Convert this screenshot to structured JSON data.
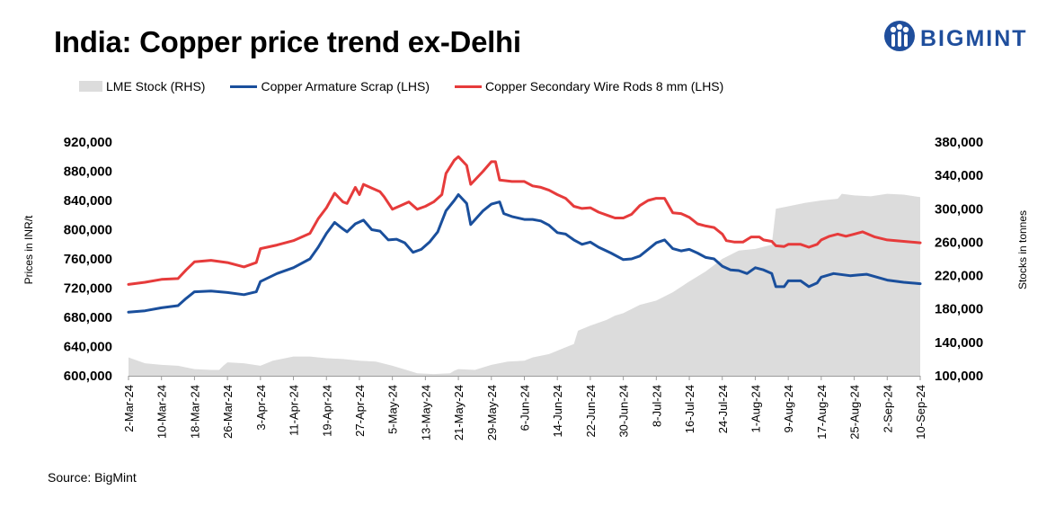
{
  "title": "India: Copper price trend ex-Delhi",
  "brand": {
    "name": "BIGMINT",
    "color": "#1f4e9c",
    "icon": "bigmint-people-icon"
  },
  "source": "Source: BigMint",
  "colors": {
    "lme": "#dcdcdc",
    "scrap": "#1a4f9c",
    "rods": "#e63b3b"
  },
  "chart_data": {
    "type": "line",
    "ylabel": "Prices in INR/t",
    "y2label": "Stocks in tonnes",
    "ylim": [
      600000,
      920000
    ],
    "y_ticks": [
      "600,000",
      "640,000",
      "680,000",
      "720,000",
      "760,000",
      "800,000",
      "840,000",
      "880,000",
      "920,000"
    ],
    "y2lim": [
      100000,
      380000
    ],
    "y2_ticks": [
      "100,000",
      "140,000",
      "180,000",
      "220,000",
      "260,000",
      "300,000",
      "340,000",
      "380,000"
    ],
    "x_ticks": [
      "2-Mar-24",
      "10-Mar-24",
      "18-Mar-24",
      "26-Mar-24",
      "3-Apr-24",
      "11-Apr-24",
      "19-Apr-24",
      "27-Apr-24",
      "5-May-24",
      "13-May-24",
      "21-May-24",
      "29-May-24",
      "6-Jun-24",
      "14-Jun-24",
      "22-Jun-24",
      "30-Jun-24",
      "8-Jul-24",
      "16-Jul-24",
      "24-Jul-24",
      "1-Aug-24",
      "9-Aug-24",
      "17-Aug-24",
      "25-Aug-24",
      "2-Sep-24",
      "10-Sep-24"
    ],
    "legend_position": "top-left",
    "grid": false,
    "series": [
      {
        "name": "LME Stock (RHS)",
        "type": "area",
        "axis": "right",
        "points": [
          [
            "2-Mar-24",
            122000
          ],
          [
            "6-Mar-24",
            115000
          ],
          [
            "10-Mar-24",
            113000
          ],
          [
            "14-Mar-24",
            112000
          ],
          [
            "18-Mar-24",
            108000
          ],
          [
            "22-Mar-24",
            107000
          ],
          [
            "24-Mar-24",
            107000
          ],
          [
            "25-Mar-24",
            112000
          ],
          [
            "26-Mar-24",
            116000
          ],
          [
            "30-Mar-24",
            115000
          ],
          [
            "3-Apr-24",
            112000
          ],
          [
            "6-Apr-24",
            118000
          ],
          [
            "11-Apr-24",
            123000
          ],
          [
            "15-Apr-24",
            123000
          ],
          [
            "19-Apr-24",
            121000
          ],
          [
            "23-Apr-24",
            120000
          ],
          [
            "27-Apr-24",
            118000
          ],
          [
            "1-May-24",
            117000
          ],
          [
            "5-May-24",
            112000
          ],
          [
            "9-May-24",
            106000
          ],
          [
            "11-May-24",
            103000
          ],
          [
            "15-May-24",
            102000
          ],
          [
            "19-May-24",
            103000
          ],
          [
            "20-May-24",
            106000
          ],
          [
            "21-May-24",
            108000
          ],
          [
            "25-May-24",
            107000
          ],
          [
            "29-May-24",
            113000
          ],
          [
            "2-Jun-24",
            117000
          ],
          [
            "6-Jun-24",
            118000
          ],
          [
            "8-Jun-24",
            122000
          ],
          [
            "12-Jun-24",
            126000
          ],
          [
            "14-Jun-24",
            130000
          ],
          [
            "16-Jun-24",
            134000
          ],
          [
            "18-Jun-24",
            138000
          ],
          [
            "19-Jun-24",
            154000
          ],
          [
            "22-Jun-24",
            160000
          ],
          [
            "26-Jun-24",
            167000
          ],
          [
            "28-Jun-24",
            172000
          ],
          [
            "30-Jun-24",
            175000
          ],
          [
            "4-Jul-24",
            185000
          ],
          [
            "8-Jul-24",
            190000
          ],
          [
            "12-Jul-24",
            200000
          ],
          [
            "16-Jul-24",
            213000
          ],
          [
            "20-Jul-24",
            225000
          ],
          [
            "24-Jul-24",
            240000
          ],
          [
            "28-Jul-24",
            250000
          ],
          [
            "1-Aug-24",
            252000
          ],
          [
            "5-Aug-24",
            257000
          ],
          [
            "6-Aug-24",
            300000
          ],
          [
            "9-Aug-24",
            303000
          ],
          [
            "13-Aug-24",
            307000
          ],
          [
            "17-Aug-24",
            310000
          ],
          [
            "21-Aug-24",
            312000
          ],
          [
            "22-Aug-24",
            318000
          ],
          [
            "25-Aug-24",
            316000
          ],
          [
            "29-Aug-24",
            315000
          ],
          [
            "2-Sep-24",
            318000
          ],
          [
            "6-Sep-24",
            317000
          ],
          [
            "10-Sep-24",
            314000
          ]
        ]
      },
      {
        "name": "Copper Armature Scrap (LHS)",
        "type": "line",
        "axis": "left",
        "points": [
          [
            "2-Mar-24",
            687000
          ],
          [
            "6-Mar-24",
            689000
          ],
          [
            "10-Mar-24",
            693000
          ],
          [
            "14-Mar-24",
            696000
          ],
          [
            "16-Mar-24",
            706000
          ],
          [
            "18-Mar-24",
            715000
          ],
          [
            "22-Mar-24",
            716000
          ],
          [
            "26-Mar-24",
            714000
          ],
          [
            "30-Mar-24",
            711000
          ],
          [
            "2-Apr-24",
            715000
          ],
          [
            "3-Apr-24",
            729000
          ],
          [
            "7-Apr-24",
            740000
          ],
          [
            "11-Apr-24",
            748000
          ],
          [
            "15-Apr-24",
            760000
          ],
          [
            "17-Apr-24",
            776000
          ],
          [
            "19-Apr-24",
            795000
          ],
          [
            "21-Apr-24",
            810000
          ],
          [
            "23-Apr-24",
            801000
          ],
          [
            "24-Apr-24",
            797000
          ],
          [
            "26-Apr-24",
            808000
          ],
          [
            "28-Apr-24",
            813000
          ],
          [
            "30-Apr-24",
            800000
          ],
          [
            "2-May-24",
            798000
          ],
          [
            "4-May-24",
            786000
          ],
          [
            "6-May-24",
            787000
          ],
          [
            "8-May-24",
            782000
          ],
          [
            "10-May-24",
            769000
          ],
          [
            "12-May-24",
            773000
          ],
          [
            "14-May-24",
            783000
          ],
          [
            "16-May-24",
            797000
          ],
          [
            "18-May-24",
            826000
          ],
          [
            "20-May-24",
            840000
          ],
          [
            "21-May-24",
            848000
          ],
          [
            "23-May-24",
            836000
          ],
          [
            "24-May-24",
            807000
          ],
          [
            "27-May-24",
            826000
          ],
          [
            "29-May-24",
            835000
          ],
          [
            "31-May-24",
            838000
          ],
          [
            "1-Jun-24",
            822000
          ],
          [
            "3-Jun-24",
            818000
          ],
          [
            "6-Jun-24",
            814000
          ],
          [
            "8-Jun-24",
            814000
          ],
          [
            "10-Jun-24",
            812000
          ],
          [
            "12-Jun-24",
            806000
          ],
          [
            "14-Jun-24",
            796000
          ],
          [
            "16-Jun-24",
            794000
          ],
          [
            "18-Jun-24",
            786000
          ],
          [
            "20-Jun-24",
            780000
          ],
          [
            "22-Jun-24",
            783000
          ],
          [
            "24-Jun-24",
            776000
          ],
          [
            "27-Jun-24",
            768000
          ],
          [
            "30-Jun-24",
            759000
          ],
          [
            "2-Jul-24",
            760000
          ],
          [
            "4-Jul-24",
            764000
          ],
          [
            "6-Jul-24",
            773000
          ],
          [
            "8-Jul-24",
            782000
          ],
          [
            "10-Jul-24",
            786000
          ],
          [
            "12-Jul-24",
            774000
          ],
          [
            "14-Jul-24",
            771000
          ],
          [
            "16-Jul-24",
            773000
          ],
          [
            "18-Jul-24",
            768000
          ],
          [
            "20-Jul-24",
            762000
          ],
          [
            "22-Jul-24",
            760000
          ],
          [
            "24-Jul-24",
            750000
          ],
          [
            "26-Jul-24",
            745000
          ],
          [
            "28-Jul-24",
            744000
          ],
          [
            "30-Jul-24",
            740000
          ],
          [
            "1-Aug-24",
            748000
          ],
          [
            "3-Aug-24",
            745000
          ],
          [
            "5-Aug-24",
            740000
          ],
          [
            "6-Aug-24",
            722000
          ],
          [
            "8-Aug-24",
            722000
          ],
          [
            "9-Aug-24",
            730000
          ],
          [
            "12-Aug-24",
            730000
          ],
          [
            "14-Aug-24",
            722000
          ],
          [
            "16-Aug-24",
            727000
          ],
          [
            "17-Aug-24",
            735000
          ],
          [
            "20-Aug-24",
            740000
          ],
          [
            "24-Aug-24",
            737000
          ],
          [
            "26-Aug-24",
            738000
          ],
          [
            "28-Aug-24",
            739000
          ],
          [
            "2-Sep-24",
            731000
          ],
          [
            "6-Sep-24",
            728000
          ],
          [
            "10-Sep-24",
            726000
          ]
        ]
      },
      {
        "name": "Copper Secondary Wire Rods 8 mm (LHS)",
        "type": "line",
        "axis": "right-of-none",
        "points": [
          [
            "2-Mar-24",
            725000
          ],
          [
            "6-Mar-24",
            728000
          ],
          [
            "10-Mar-24",
            732000
          ],
          [
            "14-Mar-24",
            733000
          ],
          [
            "16-Mar-24",
            745000
          ],
          [
            "18-Mar-24",
            756000
          ],
          [
            "22-Mar-24",
            758000
          ],
          [
            "26-Mar-24",
            755000
          ],
          [
            "30-Mar-24",
            749000
          ],
          [
            "2-Apr-24",
            755000
          ],
          [
            "3-Apr-24",
            774000
          ],
          [
            "7-Apr-24",
            779000
          ],
          [
            "11-Apr-24",
            785000
          ],
          [
            "15-Apr-24",
            795000
          ],
          [
            "17-Apr-24",
            815000
          ],
          [
            "19-Apr-24",
            830000
          ],
          [
            "21-Apr-24",
            850000
          ],
          [
            "23-Apr-24",
            838000
          ],
          [
            "24-Apr-24",
            836000
          ],
          [
            "26-Apr-24",
            858000
          ],
          [
            "27-Apr-24",
            848000
          ],
          [
            "28-Apr-24",
            862000
          ],
          [
            "30-Apr-24",
            857000
          ],
          [
            "2-May-24",
            852000
          ],
          [
            "3-May-24",
            845000
          ],
          [
            "5-May-24",
            828000
          ],
          [
            "7-May-24",
            833000
          ],
          [
            "9-May-24",
            838000
          ],
          [
            "11-May-24",
            828000
          ],
          [
            "13-May-24",
            832000
          ],
          [
            "15-May-24",
            838000
          ],
          [
            "17-May-24",
            848000
          ],
          [
            "18-May-24",
            877000
          ],
          [
            "20-May-24",
            895000
          ],
          [
            "21-May-24",
            900000
          ],
          [
            "23-May-24",
            888000
          ],
          [
            "24-May-24",
            862000
          ],
          [
            "27-May-24",
            880000
          ],
          [
            "29-May-24",
            893000
          ],
          [
            "30-May-24",
            893000
          ],
          [
            "31-May-24",
            868000
          ],
          [
            "3-Jun-24",
            866000
          ],
          [
            "6-Jun-24",
            866000
          ],
          [
            "8-Jun-24",
            860000
          ],
          [
            "10-Jun-24",
            858000
          ],
          [
            "12-Jun-24",
            854000
          ],
          [
            "14-Jun-24",
            848000
          ],
          [
            "16-Jun-24",
            843000
          ],
          [
            "18-Jun-24",
            832000
          ],
          [
            "20-Jun-24",
            829000
          ],
          [
            "22-Jun-24",
            830000
          ],
          [
            "24-Jun-24",
            824000
          ],
          [
            "27-Jun-24",
            818000
          ],
          [
            "28-Jun-24",
            816000
          ],
          [
            "30-Jun-24",
            816000
          ],
          [
            "2-Jul-24",
            821000
          ],
          [
            "4-Jul-24",
            833000
          ],
          [
            "6-Jul-24",
            840000
          ],
          [
            "8-Jul-24",
            843000
          ],
          [
            "10-Jul-24",
            843000
          ],
          [
            "12-Jul-24",
            823000
          ],
          [
            "14-Jul-24",
            822000
          ],
          [
            "16-Jul-24",
            817000
          ],
          [
            "18-Jul-24",
            808000
          ],
          [
            "20-Jul-24",
            805000
          ],
          [
            "22-Jul-24",
            803000
          ],
          [
            "24-Jul-24",
            794000
          ],
          [
            "25-Jul-24",
            785000
          ],
          [
            "27-Jul-24",
            783000
          ],
          [
            "29-Jul-24",
            783000
          ],
          [
            "31-Jul-24",
            790000
          ],
          [
            "2-Aug-24",
            790000
          ],
          [
            "3-Aug-24",
            786000
          ],
          [
            "5-Aug-24",
            784000
          ],
          [
            "6-Aug-24",
            778000
          ],
          [
            "8-Aug-24",
            777000
          ],
          [
            "9-Aug-24",
            780000
          ],
          [
            "12-Aug-24",
            780000
          ],
          [
            "14-Aug-24",
            776000
          ],
          [
            "16-Aug-24",
            780000
          ],
          [
            "17-Aug-24",
            786000
          ],
          [
            "19-Aug-24",
            791000
          ],
          [
            "21-Aug-24",
            794000
          ],
          [
            "23-Aug-24",
            791000
          ],
          [
            "25-Aug-24",
            794000
          ],
          [
            "27-Aug-24",
            797000
          ],
          [
            "30-Aug-24",
            790000
          ],
          [
            "2-Sep-24",
            786000
          ],
          [
            "6-Sep-24",
            784000
          ],
          [
            "10-Sep-24",
            782000
          ]
        ]
      }
    ]
  }
}
